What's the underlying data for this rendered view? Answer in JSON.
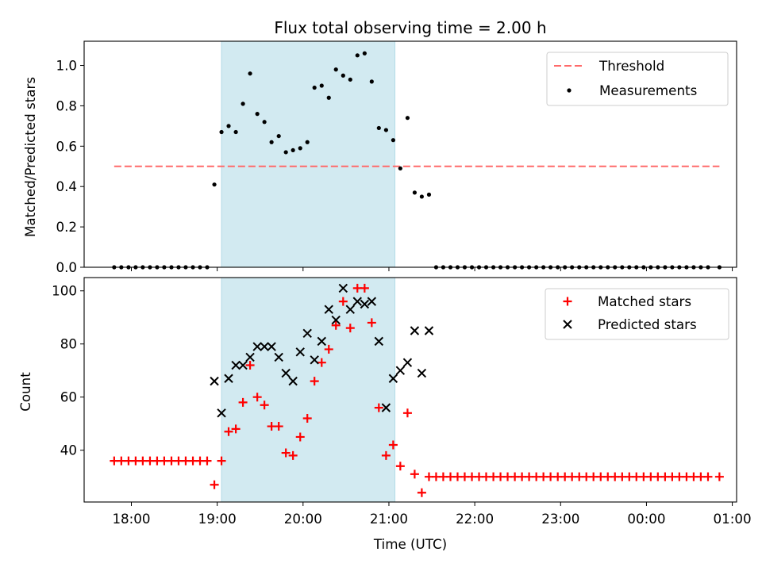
{
  "chart_data": [
    {
      "type": "scatter",
      "title": "Flux total observing time = 2.00 h",
      "xlabel": "",
      "ylabel": "Matched/Predicted stars",
      "ylim": [
        0,
        1.12
      ],
      "yticks": [
        "0.0",
        "0.2",
        "0.4",
        "0.6",
        "0.8",
        "1.0"
      ],
      "x_unit": "hours since 00:00 UTC of the first day",
      "xlim": [
        17.45,
        25.05
      ],
      "xticks_shown": false,
      "shaded_region": {
        "x_start": 19.05,
        "x_end": 21.07,
        "color": "#add8e6"
      },
      "threshold": {
        "name": "Threshold",
        "value": 0.5,
        "x_start": 17.8,
        "x_end": 24.85,
        "color": "#ff6a6a",
        "style": "dashed"
      },
      "series": [
        {
          "name": "Measurements",
          "color": "#000000",
          "marker": "dot",
          "x": [
            17.8,
            17.883,
            17.967,
            18.05,
            18.133,
            18.217,
            18.3,
            18.383,
            18.467,
            18.55,
            18.633,
            18.717,
            18.8,
            18.883,
            18.967,
            19.05,
            19.133,
            19.217,
            19.3,
            19.383,
            19.467,
            19.55,
            19.633,
            19.717,
            19.8,
            19.883,
            19.967,
            20.05,
            20.133,
            20.217,
            20.3,
            20.383,
            20.467,
            20.55,
            20.633,
            20.717,
            20.8,
            20.883,
            20.967,
            21.05,
            21.133,
            21.217,
            21.3,
            21.383,
            21.467,
            21.55,
            21.633,
            21.717,
            21.8,
            21.883,
            21.967,
            22.05,
            22.133,
            22.217,
            22.3,
            22.383,
            22.467,
            22.55,
            22.633,
            22.717,
            22.8,
            22.883,
            22.967,
            23.05,
            23.133,
            23.217,
            23.3,
            23.383,
            23.467,
            23.55,
            23.633,
            23.717,
            23.8,
            23.883,
            23.967,
            24.05,
            24.133,
            24.217,
            24.3,
            24.383,
            24.467,
            24.55,
            24.633,
            24.717,
            24.85
          ],
          "y": [
            0,
            0,
            0,
            0,
            0,
            0,
            0,
            0,
            0,
            0,
            0,
            0,
            0,
            0,
            0.41,
            0.67,
            0.7,
            0.67,
            0.81,
            0.96,
            0.76,
            0.72,
            0.62,
            0.65,
            0.57,
            0.58,
            0.59,
            0.62,
            0.89,
            0.9,
            0.84,
            0.98,
            0.95,
            0.93,
            1.05,
            1.06,
            0.92,
            0.69,
            0.68,
            0.63,
            0.49,
            0.74,
            0.37,
            0.35,
            0.36,
            0,
            0,
            0,
            0,
            0,
            0,
            0,
            0,
            0,
            0,
            0,
            0,
            0,
            0,
            0,
            0,
            0,
            0,
            0,
            0,
            0,
            0,
            0,
            0,
            0,
            0,
            0,
            0,
            0,
            0,
            0,
            0,
            0,
            0,
            0,
            0,
            0,
            0,
            0,
            0
          ]
        }
      ],
      "legend": {
        "placement": "upper right",
        "entries": [
          "Threshold",
          "Measurements"
        ]
      }
    },
    {
      "type": "scatter",
      "title": "",
      "xlabel": "Time (UTC)",
      "ylabel": "Count",
      "ylim": [
        20.5,
        105
      ],
      "yticks": [
        "40",
        "60",
        "80",
        "100"
      ],
      "x_unit": "hours since 00:00 UTC of the first day",
      "xlim": [
        17.45,
        25.05
      ],
      "xtick_values": [
        18,
        19,
        20,
        21,
        22,
        23,
        24,
        25
      ],
      "xticks": [
        "18:00",
        "19:00",
        "20:00",
        "21:00",
        "22:00",
        "23:00",
        "00:00",
        "01:00"
      ],
      "shaded_region": {
        "x_start": 19.05,
        "x_end": 21.07,
        "color": "#add8e6"
      },
      "series": [
        {
          "name": "Matched stars",
          "color": "#ff0000",
          "marker": "plus",
          "x": [
            17.8,
            17.883,
            17.967,
            18.05,
            18.133,
            18.217,
            18.3,
            18.383,
            18.467,
            18.55,
            18.633,
            18.717,
            18.8,
            18.883,
            18.967,
            19.05,
            19.133,
            19.217,
            19.3,
            19.383,
            19.467,
            19.55,
            19.633,
            19.717,
            19.8,
            19.883,
            19.967,
            20.05,
            20.133,
            20.217,
            20.3,
            20.383,
            20.467,
            20.55,
            20.633,
            20.717,
            20.8,
            20.883,
            20.967,
            21.05,
            21.133,
            21.217,
            21.3,
            21.383,
            21.467,
            21.55,
            21.633,
            21.717,
            21.8,
            21.883,
            21.967,
            22.05,
            22.133,
            22.217,
            22.3,
            22.383,
            22.467,
            22.55,
            22.633,
            22.717,
            22.8,
            22.883,
            22.967,
            23.05,
            23.133,
            23.217,
            23.3,
            23.383,
            23.467,
            23.55,
            23.633,
            23.717,
            23.8,
            23.883,
            23.967,
            24.05,
            24.133,
            24.217,
            24.3,
            24.383,
            24.467,
            24.55,
            24.633,
            24.717,
            24.85
          ],
          "y": [
            36,
            36,
            36,
            36,
            36,
            36,
            36,
            36,
            36,
            36,
            36,
            36,
            36,
            36,
            27,
            36,
            47,
            48,
            58,
            72,
            60,
            57,
            49,
            49,
            39,
            38,
            45,
            52,
            66,
            73,
            78,
            87,
            96,
            86,
            101,
            101,
            88,
            56,
            38,
            42,
            34,
            54,
            31,
            24,
            30,
            30,
            30,
            30,
            30,
            30,
            30,
            30,
            30,
            30,
            30,
            30,
            30,
            30,
            30,
            30,
            30,
            30,
            30,
            30,
            30,
            30,
            30,
            30,
            30,
            30,
            30,
            30,
            30,
            30,
            30,
            30,
            30,
            30,
            30,
            30,
            30,
            30,
            30,
            30,
            30
          ]
        },
        {
          "name": "Predicted stars",
          "color": "#000000",
          "marker": "x",
          "x": [
            18.967,
            19.05,
            19.133,
            19.217,
            19.3,
            19.383,
            19.467,
            19.55,
            19.633,
            19.717,
            19.8,
            19.883,
            19.967,
            20.05,
            20.133,
            20.217,
            20.3,
            20.383,
            20.467,
            20.55,
            20.633,
            20.717,
            20.8,
            20.883,
            20.967,
            21.05,
            21.133,
            21.217,
            21.3,
            21.383,
            21.467
          ],
          "y": [
            66,
            54,
            67,
            72,
            72,
            75,
            79,
            79,
            79,
            75,
            69,
            66,
            77,
            84,
            74,
            81,
            93,
            89,
            101,
            93,
            96,
            95,
            96,
            81,
            56,
            67,
            70,
            73,
            85,
            69,
            85
          ]
        }
      ],
      "legend": {
        "placement": "upper right",
        "entries": [
          "Matched stars",
          "Predicted stars"
        ]
      }
    }
  ]
}
